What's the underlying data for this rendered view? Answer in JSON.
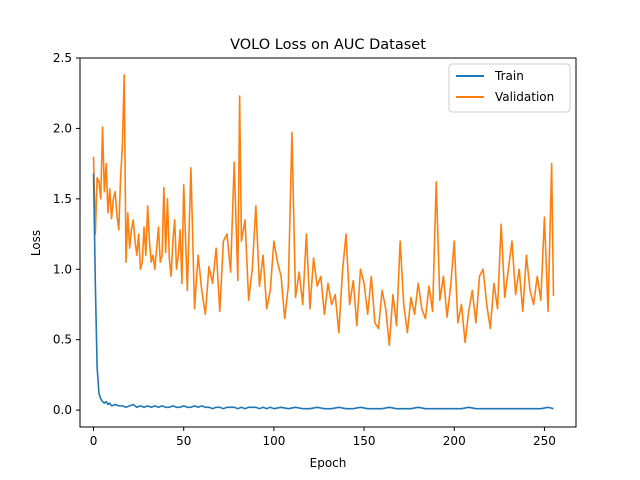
{
  "chart_data": {
    "type": "line",
    "title": "VOLO Loss on AUC Dataset",
    "xlabel": "Epoch",
    "ylabel": "Loss",
    "xlim": [
      -7.5,
      267.5
    ],
    "ylim": [
      -0.12,
      2.5
    ],
    "xticks": [
      0,
      50,
      100,
      150,
      200,
      250
    ],
    "yticks": [
      0.0,
      0.5,
      1.0,
      1.5,
      2.0,
      2.5
    ],
    "ytick_labels": [
      "0.0",
      "0.5",
      "1.0",
      "1.5",
      "2.0",
      "2.5"
    ],
    "grid": false,
    "legend_position": "top-right",
    "series": [
      {
        "name": "Train",
        "color": "#1f77b4",
        "x": [
          0,
          1,
          2,
          3,
          4,
          5,
          6,
          7,
          8,
          9,
          10,
          12,
          14,
          16,
          18,
          20,
          22,
          24,
          26,
          28,
          30,
          32,
          34,
          36,
          38,
          40,
          42,
          44,
          46,
          48,
          50,
          52,
          54,
          56,
          58,
          60,
          62,
          64,
          66,
          68,
          70,
          72,
          74,
          76,
          78,
          80,
          82,
          84,
          86,
          88,
          90,
          92,
          94,
          96,
          98,
          100,
          104,
          108,
          112,
          116,
          120,
          124,
          128,
          132,
          136,
          140,
          144,
          148,
          152,
          156,
          160,
          164,
          168,
          172,
          176,
          180,
          184,
          188,
          192,
          196,
          200,
          204,
          208,
          212,
          216,
          220,
          224,
          228,
          232,
          236,
          240,
          244,
          248,
          252,
          255
        ],
        "values": [
          1.68,
          0.9,
          0.3,
          0.12,
          0.08,
          0.06,
          0.05,
          0.06,
          0.04,
          0.05,
          0.03,
          0.04,
          0.03,
          0.03,
          0.02,
          0.03,
          0.04,
          0.02,
          0.03,
          0.02,
          0.03,
          0.02,
          0.03,
          0.02,
          0.03,
          0.02,
          0.02,
          0.03,
          0.02,
          0.02,
          0.03,
          0.02,
          0.02,
          0.03,
          0.02,
          0.03,
          0.02,
          0.02,
          0.01,
          0.02,
          0.02,
          0.01,
          0.02,
          0.02,
          0.02,
          0.01,
          0.02,
          0.01,
          0.02,
          0.02,
          0.02,
          0.01,
          0.02,
          0.01,
          0.02,
          0.01,
          0.02,
          0.01,
          0.02,
          0.01,
          0.01,
          0.02,
          0.01,
          0.01,
          0.02,
          0.01,
          0.01,
          0.02,
          0.01,
          0.01,
          0.01,
          0.02,
          0.01,
          0.01,
          0.01,
          0.02,
          0.01,
          0.01,
          0.01,
          0.01,
          0.01,
          0.01,
          0.02,
          0.01,
          0.01,
          0.01,
          0.01,
          0.01,
          0.01,
          0.01,
          0.01,
          0.01,
          0.01,
          0.02,
          0.01
        ]
      },
      {
        "name": "Validation",
        "color": "#ff7f0e",
        "x": [
          0,
          1,
          2,
          3,
          4,
          5,
          6,
          7,
          8,
          9,
          10,
          11,
          12,
          13,
          14,
          15,
          16,
          17,
          18,
          19,
          20,
          21,
          22,
          23,
          24,
          25,
          26,
          27,
          28,
          29,
          30,
          31,
          32,
          33,
          34,
          35,
          36,
          37,
          38,
          39,
          40,
          41,
          42,
          43,
          44,
          45,
          46,
          47,
          48,
          49,
          50,
          52,
          54,
          56,
          58,
          60,
          62,
          64,
          66,
          68,
          70,
          72,
          74,
          76,
          78,
          80,
          81,
          82,
          84,
          86,
          88,
          90,
          92,
          94,
          96,
          98,
          100,
          102,
          104,
          106,
          108,
          110,
          112,
          114,
          116,
          118,
          120,
          122,
          124,
          126,
          128,
          130,
          132,
          134,
          136,
          138,
          140,
          142,
          144,
          146,
          148,
          150,
          152,
          154,
          156,
          158,
          160,
          162,
          164,
          166,
          168,
          170,
          172,
          174,
          176,
          178,
          180,
          182,
          184,
          186,
          188,
          190,
          192,
          194,
          196,
          198,
          200,
          202,
          204,
          206,
          208,
          210,
          212,
          214,
          216,
          218,
          220,
          222,
          224,
          226,
          228,
          230,
          232,
          234,
          236,
          238,
          240,
          242,
          244,
          246,
          248,
          250,
          252,
          254,
          255
        ],
        "values": [
          1.8,
          1.25,
          1.65,
          1.62,
          1.5,
          2.01,
          1.55,
          1.75,
          1.4,
          1.57,
          1.36,
          1.5,
          1.55,
          1.38,
          1.28,
          1.65,
          1.88,
          2.38,
          1.05,
          1.4,
          1.15,
          1.28,
          1.35,
          1.2,
          1.1,
          1.25,
          1.0,
          1.05,
          1.3,
          1.1,
          1.45,
          1.2,
          1.05,
          1.1,
          1.0,
          1.15,
          1.3,
          1.05,
          1.1,
          1.58,
          1.12,
          1.5,
          1.08,
          0.95,
          1.2,
          1.35,
          1.0,
          1.1,
          1.28,
          0.9,
          1.6,
          0.85,
          1.72,
          0.72,
          1.1,
          0.85,
          0.68,
          1.02,
          0.9,
          1.15,
          0.7,
          1.2,
          1.25,
          0.98,
          1.76,
          0.92,
          2.23,
          1.2,
          1.35,
          0.78,
          1.0,
          1.45,
          0.88,
          1.1,
          0.72,
          0.85,
          1.2,
          1.05,
          0.95,
          0.65,
          0.88,
          1.97,
          0.8,
          0.98,
          0.75,
          1.25,
          0.72,
          1.08,
          0.88,
          0.95,
          0.68,
          0.9,
          0.75,
          0.82,
          0.55,
          0.98,
          1.25,
          0.75,
          0.92,
          0.6,
          1.0,
          0.9,
          0.68,
          0.95,
          0.62,
          0.58,
          0.85,
          0.72,
          0.46,
          0.82,
          0.6,
          1.2,
          0.75,
          0.55,
          0.8,
          0.68,
          0.9,
          0.72,
          0.65,
          0.88,
          0.7,
          1.62,
          0.78,
          0.95,
          0.66,
          0.88,
          1.2,
          0.62,
          0.75,
          0.48,
          0.7,
          0.85,
          0.62,
          0.95,
          1.0,
          0.75,
          0.58,
          0.9,
          0.72,
          1.32,
          0.8,
          1.0,
          1.2,
          0.82,
          1.0,
          0.7,
          1.1,
          0.85,
          0.75,
          0.95,
          0.78,
          1.37,
          0.7,
          1.75,
          0.81
        ]
      }
    ]
  }
}
